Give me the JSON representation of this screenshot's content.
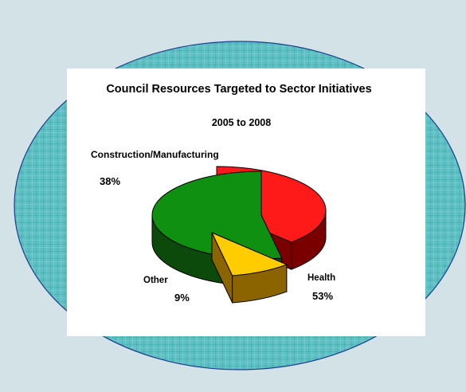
{
  "chart_data": {
    "type": "pie",
    "title": "Council Resources Targeted to Sector Initiatives",
    "subtitle": "2005 to 2008",
    "slices": [
      {
        "label": "Construction/Manufacturing",
        "value": 38,
        "value_label": "38%",
        "color": "#ff1a1a",
        "side_color": "#7a0000"
      },
      {
        "label": "Other",
        "value": 9,
        "value_label": "9%",
        "color": "#ffcc00",
        "side_color": "#8b6400"
      },
      {
        "label": "Health",
        "value": 53,
        "value_label": "53%",
        "color": "#109010",
        "side_color": "#0b4a0b"
      }
    ],
    "three_d": true,
    "exploded": true
  },
  "colors": {
    "background": "#d2e2e6",
    "ellipse_fill": "#5ec0c2",
    "ellipse_grid": "#2f9aa0",
    "ellipse_outline": "#1b3f8f",
    "panel": "#ffffff"
  }
}
